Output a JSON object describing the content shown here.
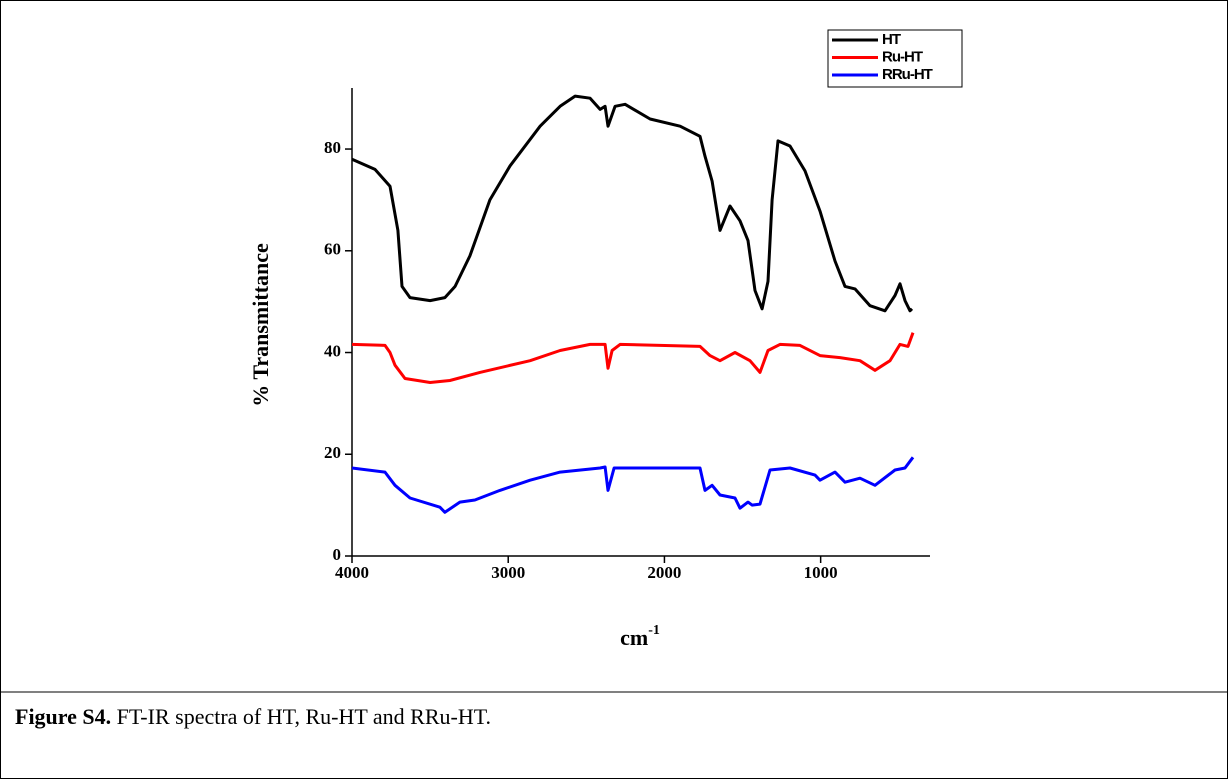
{
  "chart_data": {
    "type": "line",
    "ylabel": "% Transmittance",
    "xlabel": {
      "base": "cm",
      "sup": "-1"
    },
    "xlim": [
      4000,
      300
    ],
    "ylim": [
      0,
      92
    ],
    "xticks": [
      4000,
      3000,
      2000,
      1000
    ],
    "yticks": [
      0,
      20,
      40,
      60,
      80
    ],
    "legend": "top-right",
    "series": [
      {
        "name": "HT",
        "color": "#000000",
        "x": [
          4000,
          3853,
          3757,
          3706,
          3680,
          3629,
          3500,
          3405,
          3340,
          3245,
          3117,
          2988,
          2796,
          2668,
          2572,
          2476,
          2412,
          2380,
          2361,
          2316,
          2252,
          2092,
          1900,
          1772,
          1740,
          1695,
          1644,
          1580,
          1516,
          1465,
          1420,
          1375,
          1337,
          1311,
          1273,
          1196,
          1100,
          1004,
          908,
          844,
          780,
          684,
          588,
          524,
          492,
          460,
          428,
          415
        ],
        "values": [
          78,
          76,
          72.7,
          64,
          53,
          50.8,
          50.2,
          50.8,
          53,
          59,
          70,
          76.7,
          84.5,
          88.4,
          90.4,
          90,
          87.8,
          88.4,
          84.5,
          88.4,
          88.8,
          85.9,
          84.5,
          82.5,
          78.6,
          73.7,
          64,
          68.8,
          65.9,
          62,
          52.2,
          48.6,
          54,
          70,
          81.6,
          80.6,
          75.7,
          67.8,
          58,
          53,
          52.5,
          49.2,
          48.2,
          51.2,
          53.5,
          50.2,
          48.2,
          48.6
        ]
      },
      {
        "name": "Ru-HT",
        "color": "#ff0000",
        "x": [
          4000,
          3789,
          3757,
          3725,
          3661,
          3500,
          3373,
          3181,
          2860,
          2668,
          2476,
          2380,
          2361,
          2335,
          2284,
          1772,
          1708,
          1644,
          1548,
          1452,
          1388,
          1337,
          1260,
          1132,
          1004,
          876,
          748,
          652,
          556,
          492,
          441,
          409
        ],
        "values": [
          41.6,
          41.4,
          40,
          37.5,
          34.9,
          34.1,
          34.5,
          36.1,
          38.4,
          40.4,
          41.6,
          41.6,
          36.9,
          40.4,
          41.6,
          41.2,
          39.4,
          38.4,
          40,
          38.4,
          36.1,
          40.4,
          41.6,
          41.4,
          39.4,
          39,
          38.4,
          36.5,
          38.4,
          41.6,
          41.2,
          43.9
        ]
      },
      {
        "name": "RRu-HT",
        "color": "#0000ff",
        "x": [
          4000,
          3789,
          3725,
          3629,
          3437,
          3405,
          3309,
          3213,
          3053,
          2860,
          2668,
          2412,
          2380,
          2361,
          2322,
          1772,
          1740,
          1695,
          1644,
          1548,
          1516,
          1465,
          1439,
          1388,
          1324,
          1196,
          1036,
          1004,
          908,
          844,
          748,
          652,
          524,
          460,
          409
        ],
        "values": [
          17.3,
          16.5,
          13.9,
          11.4,
          9.6,
          8.6,
          10.6,
          11,
          12.9,
          14.9,
          16.5,
          17.3,
          17.5,
          12.9,
          17.3,
          17.3,
          12.9,
          13.9,
          12,
          11.4,
          9.4,
          10.6,
          10,
          10.2,
          16.9,
          17.3,
          15.9,
          14.9,
          16.5,
          14.5,
          15.3,
          13.9,
          16.9,
          17.3,
          19.4
        ]
      }
    ]
  },
  "caption": {
    "label": "Figure S4.",
    "text": "FT-IR spectra of HT, Ru-HT and RRu-HT."
  }
}
